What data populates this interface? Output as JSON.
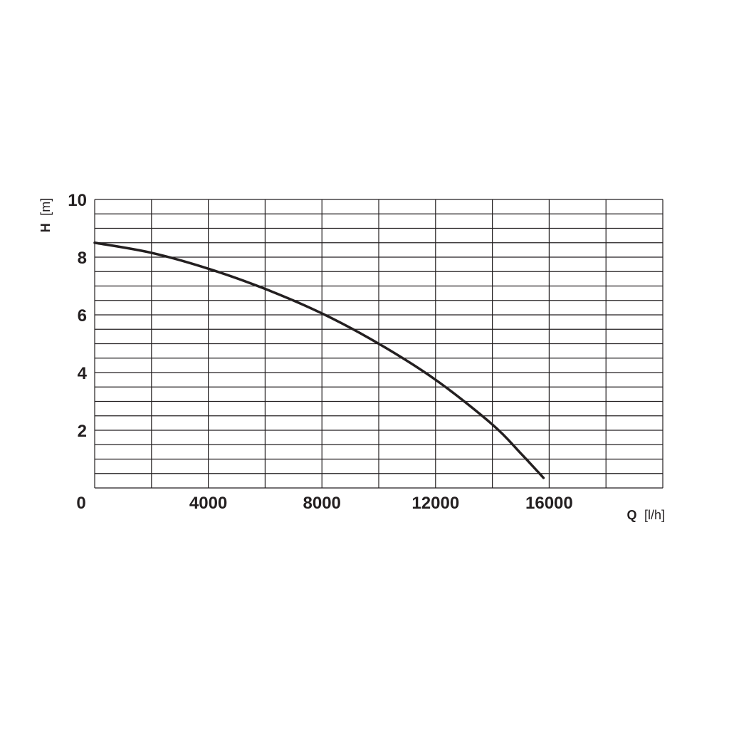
{
  "chart_data": {
    "type": "line",
    "title": "",
    "xlabel": {
      "symbol": "Q",
      "unit": "[l/h]"
    },
    "ylabel": {
      "symbol": "H",
      "unit": "[m]"
    },
    "xlim": [
      0,
      20000
    ],
    "ylim": [
      0,
      10
    ],
    "grid": true,
    "x_minor_step": 2000,
    "y_minor_step": 0.5,
    "x_tick_labels": [
      "0",
      "4000",
      "8000",
      "12000",
      "16000"
    ],
    "x_tick_values": [
      0,
      4000,
      8000,
      12000,
      16000
    ],
    "y_tick_labels": [
      "2",
      "4",
      "6",
      "8",
      "10"
    ],
    "y_tick_values": [
      2,
      4,
      6,
      8,
      10
    ],
    "series": [
      {
        "x": [
          0,
          2000,
          4000,
          6000,
          8000,
          10000,
          12000,
          14000,
          15000,
          15800
        ],
        "y": [
          8.5,
          8.15,
          7.6,
          6.9,
          6.05,
          5.0,
          3.75,
          2.2,
          1.2,
          0.35
        ]
      }
    ],
    "colors": {
      "line": "#231f20",
      "grid": "#231f20"
    }
  }
}
